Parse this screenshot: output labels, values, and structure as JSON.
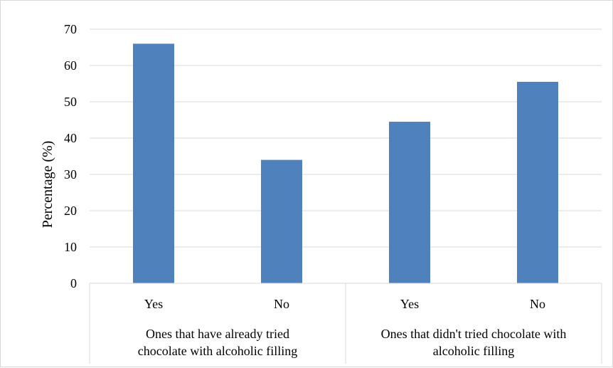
{
  "chart_data": {
    "type": "bar",
    "ylabel": "Percentage (%)",
    "ylim": [
      0,
      70
    ],
    "ytick_step": 10,
    "grid": true,
    "bar_color": "#4f81bd",
    "grid_color": "#d9d9d9",
    "categories": [
      "Yes",
      "No",
      "Yes",
      "No"
    ],
    "values": [
      66,
      34,
      44.5,
      55.5
    ],
    "groups": [
      {
        "label_lines": [
          "Ones that have already tried",
          "chocolate with alcoholic filling"
        ],
        "span": [
          0,
          1
        ]
      },
      {
        "label_lines": [
          "Ones that didn't tried chocolate with",
          "alcoholic filling"
        ],
        "span": [
          2,
          3
        ]
      }
    ]
  }
}
